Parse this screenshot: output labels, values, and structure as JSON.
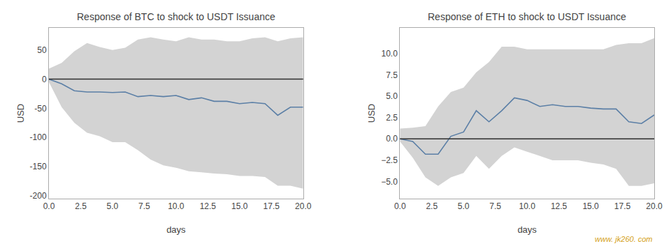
{
  "chart_data": [
    {
      "type": "line",
      "title": "Response of BTC to shock to USDT Issuance",
      "xlabel": "days",
      "ylabel": "USD",
      "x": [
        0,
        1,
        2,
        3,
        4,
        5,
        6,
        7,
        8,
        9,
        10,
        11,
        12,
        13,
        14,
        15,
        16,
        17,
        18,
        19,
        20
      ],
      "values": [
        0,
        -8,
        -20,
        -22,
        -22,
        -23,
        -22,
        -30,
        -28,
        -30,
        -28,
        -35,
        -32,
        -38,
        -38,
        -42,
        -40,
        -42,
        -62,
        -48,
        -48
      ],
      "upper": [
        18,
        28,
        48,
        62,
        55,
        50,
        54,
        68,
        72,
        68,
        65,
        72,
        68,
        68,
        65,
        65,
        70,
        72,
        65,
        70,
        72
      ],
      "lower": [
        -5,
        -48,
        -75,
        -92,
        -98,
        -108,
        -108,
        -122,
        -138,
        -148,
        -152,
        -158,
        -160,
        -162,
        -163,
        -166,
        -166,
        -168,
        -183,
        -183,
        -188
      ],
      "hline": 0,
      "color": "#5b7fa6",
      "xlim": [
        0,
        20
      ],
      "ylim": [
        -205,
        88
      ],
      "xticks": [
        {
          "value": 0,
          "label": "0.0"
        },
        {
          "value": 2.5,
          "label": "2.5"
        },
        {
          "value": 5,
          "label": "5.0"
        },
        {
          "value": 7.5,
          "label": "7.5"
        },
        {
          "value": 10,
          "label": "10.0"
        },
        {
          "value": 12.5,
          "label": "12.5"
        },
        {
          "value": 15,
          "label": "15.0"
        },
        {
          "value": 17.5,
          "label": "17.5"
        },
        {
          "value": 20,
          "label": "20.0"
        }
      ],
      "yticks": [
        50,
        0,
        -50,
        -100,
        -150,
        -200
      ],
      "grid": false
    },
    {
      "type": "line",
      "title": "Response of ETH to shock to USDT Issuance",
      "xlabel": "days",
      "ylabel": "USD",
      "x": [
        0,
        1,
        2,
        3,
        4,
        5,
        6,
        7,
        8,
        9,
        10,
        11,
        12,
        13,
        14,
        15,
        16,
        17,
        18,
        19,
        20
      ],
      "values": [
        0,
        -0.3,
        -1.8,
        -1.8,
        0.3,
        0.8,
        3.3,
        2.0,
        3.3,
        4.8,
        4.5,
        3.8,
        4.0,
        3.8,
        3.8,
        3.6,
        3.5,
        3.5,
        2.0,
        1.8,
        2.8
      ],
      "upper": [
        1.2,
        1.3,
        1.5,
        3.8,
        5.5,
        6.0,
        7.8,
        9.0,
        10.8,
        10.8,
        10.5,
        10.5,
        10.5,
        10.5,
        10.5,
        10.5,
        10.5,
        11.0,
        11.2,
        11.2,
        11.8
      ],
      "lower": [
        -0.3,
        -2.2,
        -4.5,
        -5.5,
        -4.5,
        -4.0,
        -2.0,
        -3.5,
        -2.0,
        -1.0,
        -1.5,
        -2.0,
        -2.5,
        -2.5,
        -2.5,
        -2.8,
        -3.0,
        -3.5,
        -5.5,
        -5.5,
        -5.2
      ],
      "hline": 0,
      "color": "#5b7fa6",
      "xlim": [
        0,
        20
      ],
      "ylim": [
        -7.0,
        13.0
      ],
      "xticks": [
        {
          "value": 0,
          "label": "0.0"
        },
        {
          "value": 2.5,
          "label": "2.5"
        },
        {
          "value": 5,
          "label": "5.0"
        },
        {
          "value": 7.5,
          "label": "7.5"
        },
        {
          "value": 10,
          "label": "10.0"
        },
        {
          "value": 12.5,
          "label": "12.5"
        },
        {
          "value": 15,
          "label": "15.0"
        },
        {
          "value": 17.5,
          "label": "17.5"
        },
        {
          "value": 20,
          "label": "20.0"
        }
      ],
      "yticks": [
        {
          "value": 10,
          "label": "10.0"
        },
        {
          "value": 7.5,
          "label": "7.5"
        },
        {
          "value": 5,
          "label": "5.0"
        },
        {
          "value": 2.5,
          "label": "2.5"
        },
        {
          "value": 0,
          "label": "0.0"
        },
        {
          "value": -2.5,
          "label": "−2.5"
        },
        {
          "value": -5,
          "label": "−5.0"
        }
      ],
      "grid": false,
      "annotations": [
        {
          "text": "www. jk260. com"
        }
      ]
    }
  ]
}
